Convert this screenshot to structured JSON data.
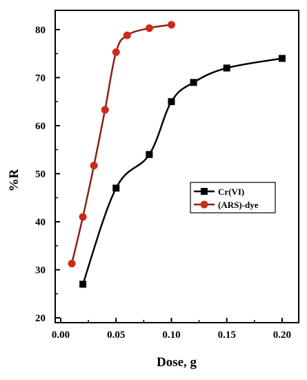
{
  "chart_data": {
    "type": "line",
    "title": "",
    "xlabel": "Dose, g",
    "ylabel": "%R",
    "xlim": [
      -0.005,
      0.215
    ],
    "ylim": [
      19,
      84
    ],
    "x_ticks": [
      "0.00",
      "0.05",
      "0.10",
      "0.15",
      "0.20"
    ],
    "x_tick_values": [
      0.0,
      0.05,
      0.1,
      0.15,
      0.2
    ],
    "y_ticks": [
      "20",
      "30",
      "40",
      "50",
      "60",
      "70",
      "80"
    ],
    "y_tick_values": [
      20,
      30,
      40,
      50,
      60,
      70,
      80
    ],
    "grid": false,
    "legend_position": "right",
    "series": [
      {
        "name": "Cr(VI)",
        "marker": "square",
        "color": "#000000",
        "line_color": "#000000",
        "x": [
          0.02,
          0.05,
          0.08,
          0.1,
          0.12,
          0.15,
          0.2
        ],
        "y": [
          27,
          47,
          54,
          65,
          69,
          72,
          74
        ]
      },
      {
        "name": "(ARS)-dye",
        "marker": "circle",
        "color": "#cc2a1c",
        "line_color": "#8a1f12",
        "x": [
          0.01,
          0.02,
          0.03,
          0.04,
          0.05,
          0.06,
          0.08,
          0.1
        ],
        "y": [
          31.3,
          41,
          51.7,
          63.3,
          75.3,
          78.8,
          80.3,
          81
        ]
      }
    ]
  }
}
